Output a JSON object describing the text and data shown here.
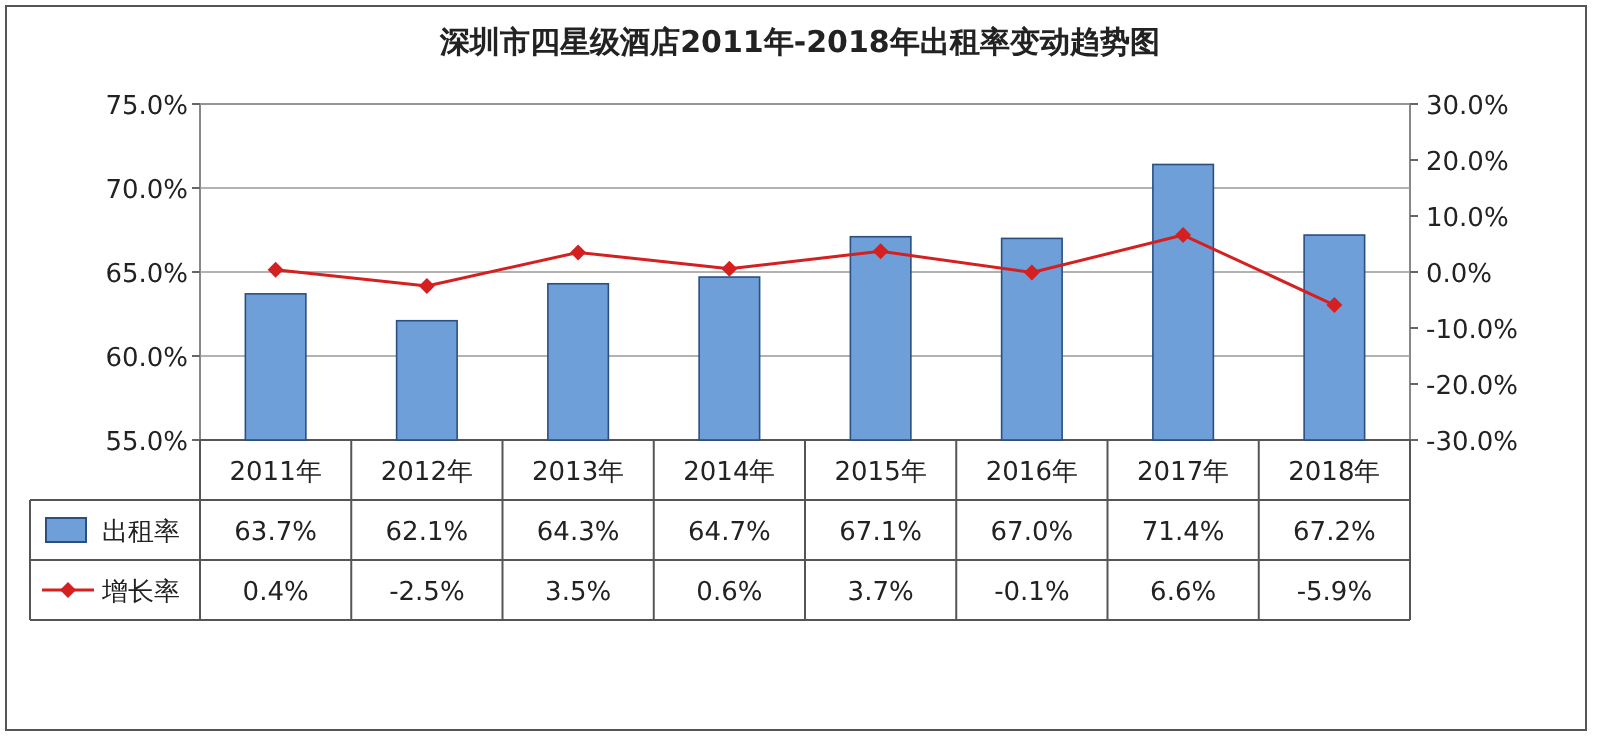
{
  "chart_data": {
    "type": "bar",
    "title": "深圳市四星级酒店2011年-2018年出租率变动趋势图",
    "categories": [
      "2011年",
      "2012年",
      "2013年",
      "2014年",
      "2015年",
      "2016年",
      "2017年",
      "2018年"
    ],
    "series": [
      {
        "name": "出租率",
        "color": "#6f9fd8",
        "values": [
          63.7,
          62.1,
          64.3,
          64.7,
          67.1,
          67.0,
          71.4,
          67.2
        ],
        "value_labels": [
          "63.7%",
          "62.1%",
          "64.3%",
          "64.7%",
          "67.1%",
          "67.0%",
          "71.4%",
          "67.2%"
        ]
      },
      {
        "name": "增长率",
        "type": "line",
        "axis": "y2",
        "color": "#d42020",
        "values": [
          0.4,
          -2.5,
          3.5,
          0.6,
          3.7,
          -0.1,
          6.6,
          -5.9
        ],
        "value_labels": [
          "0.4%",
          "-2.5%",
          "3.5%",
          "0.6%",
          "3.7%",
          "-0.1%",
          "6.6%",
          "-5.9%"
        ]
      }
    ],
    "ylim": [
      55,
      75
    ],
    "yticks": [
      {
        "value": 55,
        "label": "55.0%"
      },
      {
        "value": 60,
        "label": "60.0%"
      },
      {
        "value": 65,
        "label": "65.0%"
      },
      {
        "value": 70,
        "label": "70.0%"
      },
      {
        "value": 75,
        "label": "75.0%"
      }
    ],
    "y2lim": [
      -30,
      30
    ],
    "y2ticks": [
      {
        "value": -30,
        "label": "-30.0%"
      },
      {
        "value": -20,
        "label": "-20.0%"
      },
      {
        "value": -10,
        "label": "-10.0%"
      },
      {
        "value": 0,
        "label": "0.0%"
      },
      {
        "value": 10,
        "label": "10.0%"
      },
      {
        "value": 20,
        "label": "20.0%"
      },
      {
        "value": 30,
        "label": "30.0%"
      }
    ],
    "grid": "y",
    "legend": "bottom",
    "marker": "diamond"
  }
}
